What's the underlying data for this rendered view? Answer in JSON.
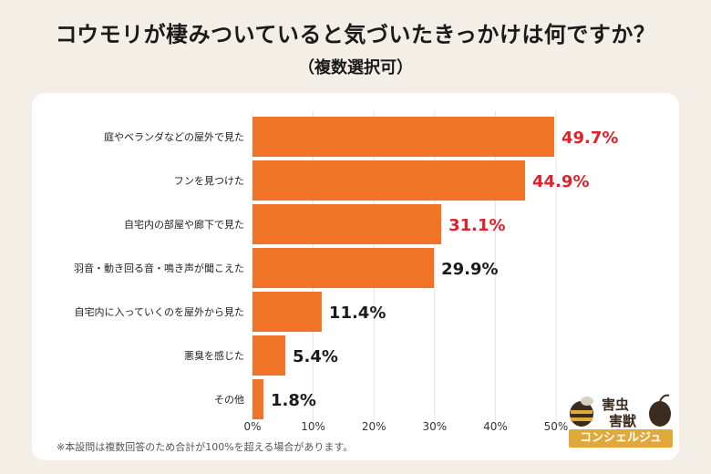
{
  "header": {
    "title": "コウモリが棲みついていると気づいたきっかけは何ですか？",
    "subtitle": "（複数選択可）"
  },
  "footnote": "※本設問は複数回答のため合計が100%を超える場合があります。",
  "logo": {
    "line1": "害虫",
    "line2": "害獣",
    "band": "コンシェルジュ"
  },
  "colors": {
    "bar": "#f07427",
    "highlight_label": "#e0202a",
    "normal_label": "#1a1a1a"
  },
  "chart_data": {
    "type": "bar",
    "orientation": "horizontal",
    "categories": [
      "庭やベランダなどの屋外で見た",
      "フンを見つけた",
      "自宅内の部屋や廊下で見た",
      "羽音・動き回る音・鳴き声が聞こえた",
      "自宅内に入っていくのを屋外から見た",
      "悪臭を感じた",
      "その他"
    ],
    "values": [
      49.7,
      44.9,
      31.1,
      29.9,
      11.4,
      5.4,
      1.8
    ],
    "value_labels": [
      "49.7%",
      "44.9%",
      "31.1%",
      "29.9%",
      "11.4%",
      "5.4%",
      "1.8%"
    ],
    "highlighted": [
      true,
      true,
      true,
      false,
      false,
      false,
      false
    ],
    "xlim": [
      0,
      50
    ],
    "xticks": [
      0,
      10,
      20,
      30,
      40,
      50
    ],
    "xtick_labels": [
      "0%",
      "10%",
      "20%",
      "30%",
      "40%",
      "50%"
    ],
    "grid": true
  }
}
